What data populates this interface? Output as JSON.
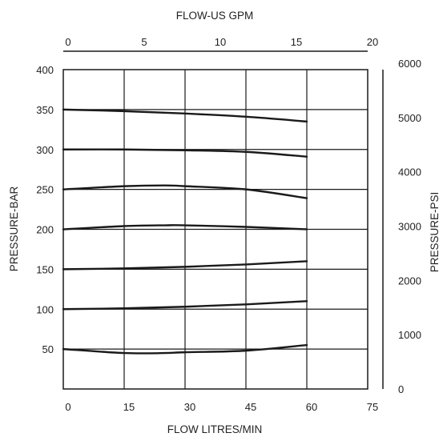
{
  "chart_data": {
    "type": "line",
    "title": "",
    "xlabel": "FLOW LITRES/MIN",
    "ylabel": "PRESSURE-BAR",
    "top_xlabel": "FLOW-US GPM",
    "right_ylabel": "PRESSURE-PSI",
    "xlim": [
      0,
      75
    ],
    "ylim": [
      0,
      400
    ],
    "top_xlim": [
      0,
      20
    ],
    "right_ylim": [
      0,
      6000
    ],
    "x_ticks": [
      "0",
      "15",
      "30",
      "45",
      "60",
      "75"
    ],
    "y_ticks": [
      "50",
      "100",
      "150",
      "200",
      "250",
      "300",
      "350",
      "400"
    ],
    "top_x_ticks": [
      "0",
      "5",
      "10",
      "15",
      "20"
    ],
    "right_y_ticks": [
      "0",
      "1000",
      "2000",
      "3000",
      "4000",
      "5000",
      "6000"
    ],
    "grid": true,
    "line_color": "#1a1a1a",
    "series": [
      {
        "x": [
          0,
          15,
          30,
          45,
          60
        ],
        "values": [
          350,
          348,
          345,
          341,
          335
        ]
      },
      {
        "x": [
          0,
          15,
          30,
          45,
          60
        ],
        "values": [
          300,
          300,
          299,
          297,
          291
        ]
      },
      {
        "x": [
          0,
          15,
          25,
          30,
          45,
          60
        ],
        "values": [
          250,
          254,
          255,
          254,
          250,
          239
        ]
      },
      {
        "x": [
          0,
          15,
          25,
          30,
          45,
          60
        ],
        "values": [
          200,
          204,
          205,
          205,
          203,
          200
        ]
      },
      {
        "x": [
          0,
          15,
          30,
          45,
          60
        ],
        "values": [
          150,
          151,
          153,
          156,
          160
        ]
      },
      {
        "x": [
          0,
          15,
          30,
          45,
          60
        ],
        "values": [
          100,
          101,
          103,
          106,
          110
        ]
      },
      {
        "x": [
          0,
          15,
          25,
          30,
          45,
          60
        ],
        "values": [
          50,
          45,
          45,
          46,
          48,
          55
        ]
      }
    ]
  }
}
